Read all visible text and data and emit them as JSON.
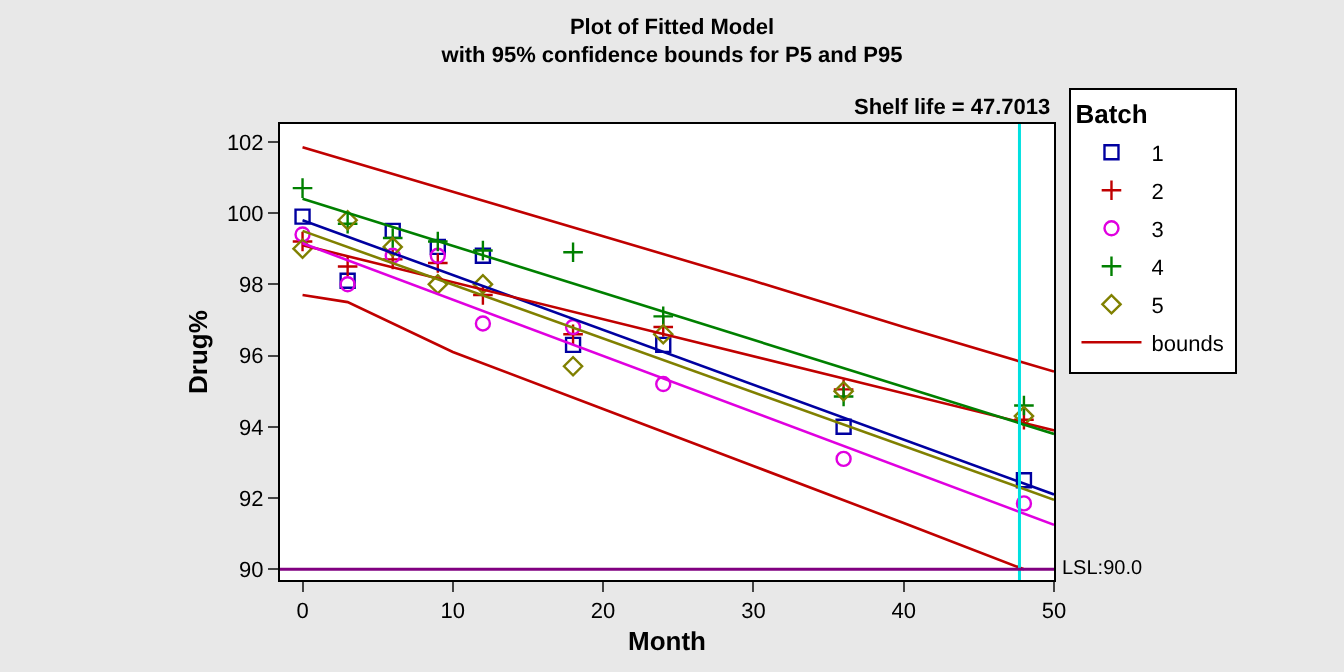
{
  "chart_data": {
    "type": "scatter",
    "title": "Plot of Fitted Model",
    "subtitle": "with 95% confidence bounds for P5 and P95",
    "xlabel": "Month",
    "ylabel": "Drug%",
    "legend_title": "Batch",
    "x": [
      0,
      3,
      6,
      9,
      12,
      18,
      24,
      36,
      48
    ],
    "series": [
      {
        "name": "1",
        "color": "#0000a0",
        "marker": "square",
        "values": [
          99.9,
          98.1,
          99.5,
          99.05,
          98.8,
          96.3,
          96.3,
          94.0,
          92.5
        ]
      },
      {
        "name": "2",
        "color": "#c00000",
        "marker": "cross",
        "values": [
          99.2,
          98.5,
          98.7,
          98.6,
          97.7,
          96.6,
          96.8,
          95.05,
          94.2
        ]
      },
      {
        "name": "3",
        "color": "#e000e0",
        "marker": "circle",
        "values": [
          99.4,
          98.0,
          98.8,
          98.8,
          96.9,
          96.8,
          95.2,
          93.1,
          91.85
        ]
      },
      {
        "name": "4",
        "color": "#008000",
        "marker": "cross",
        "values": [
          100.7,
          99.7,
          99.3,
          99.2,
          98.95,
          98.9,
          97.1,
          94.85,
          94.6
        ]
      },
      {
        "name": "5",
        "color": "#808000",
        "marker": "diamond",
        "values": [
          99.0,
          99.8,
          99.05,
          98.0,
          98.0,
          95.7,
          96.6,
          95.0,
          94.3
        ]
      },
      {
        "type": "line",
        "color": "#0000a0",
        "x": [
          0,
          50
        ],
        "values": [
          99.8,
          92.1
        ]
      },
      {
        "type": "line",
        "color": "#c00000",
        "x": [
          0,
          50
        ],
        "values": [
          99.1,
          93.9
        ]
      },
      {
        "type": "line",
        "color": "#e000e0",
        "x": [
          0,
          50
        ],
        "values": [
          99.15,
          91.25
        ]
      },
      {
        "type": "line",
        "color": "#008000",
        "x": [
          0,
          50
        ],
        "values": [
          100.4,
          93.8
        ]
      },
      {
        "type": "line",
        "color": "#808000",
        "x": [
          0,
          50
        ],
        "values": [
          99.5,
          91.95
        ]
      },
      {
        "type": "line",
        "name": "bounds",
        "color": "#c00000",
        "x": [
          0,
          10,
          20,
          30,
          40,
          50
        ],
        "values": [
          101.85,
          100.6,
          99.35,
          98.1,
          96.8,
          95.55
        ]
      },
      {
        "type": "line",
        "color": "#c00000",
        "x": [
          0,
          3,
          10,
          20,
          30,
          40,
          48
        ],
        "values": [
          97.7,
          97.5,
          96.1,
          94.5,
          92.9,
          91.3,
          90.0
        ]
      }
    ],
    "xlim": [
      -1.5,
      50
    ],
    "xticks": [
      0,
      10,
      20,
      30,
      40,
      50
    ],
    "ylim": [
      89.7,
      102.5
    ],
    "yticks": [
      90,
      92,
      94,
      96,
      98,
      100,
      102
    ],
    "ref_lines": [
      {
        "axis": "x",
        "value": 47.7013,
        "color": "#00e0e0"
      },
      {
        "axis": "y",
        "value": 90,
        "label": "LSL:90.0",
        "color": "#800080"
      }
    ],
    "annotations": [
      "Shelf life = 47.7013"
    ],
    "legend": "top right"
  }
}
